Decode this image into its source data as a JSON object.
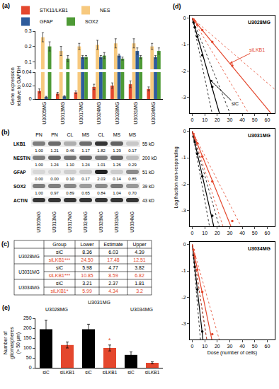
{
  "chart_data": [
    {
      "panel": "(a)",
      "type": "bar",
      "y_label": "Gene expression relative to GAPDH",
      "legend": "top",
      "categories": [
        "U3005MG",
        "U3013MG",
        "U3017MG",
        "U3024MG",
        "U3028MG",
        "U3031MG",
        "U3034MG"
      ],
      "series": [
        {
          "name": "STK11/LKB1",
          "color": "#e4472d",
          "values": [
            0.012,
            0.008,
            0.01,
            0.018,
            0.02,
            0.022,
            0.015
          ],
          "errors": [
            0.003,
            0.002,
            0.002,
            0.004,
            0.004,
            0.005,
            0.003
          ]
        },
        {
          "name": "NES",
          "color": "#f7c97e",
          "values": [
            0.26,
            0.17,
            0.2,
            0.21,
            0.22,
            0.22,
            0.2
          ],
          "errors": [
            0.03,
            0.03,
            0.02,
            0.03,
            0.03,
            0.03,
            0.02
          ]
        },
        {
          "name": "GFAP",
          "color": "#2e5c9c",
          "values": [
            0.003,
            0.004,
            0.13,
            0.13,
            0.14,
            0.17,
            0.13
          ],
          "errors": [
            0.001,
            0.001,
            0.01,
            0.01,
            0.01,
            0.02,
            0.01
          ]
        },
        {
          "name": "SOX2",
          "color": "#4e9a36",
          "values": [
            0.2,
            0.12,
            0.13,
            0.14,
            0.12,
            0.13,
            0.17
          ],
          "errors": [
            0.03,
            0.02,
            0.01,
            0.02,
            0.01,
            0.01,
            0.02
          ]
        }
      ],
      "segments": [
        {
          "ylim": [
            0.05,
            0.3
          ],
          "yticks": [
            0.1,
            0.2,
            0.3
          ]
        },
        {
          "ylim": [
            0,
            0.04
          ],
          "yticks": [
            0,
            0.02,
            0.04
          ]
        }
      ]
    },
    {
      "panel": "(d)",
      "type": "scatter",
      "title": "U3028MG",
      "xlim": [
        -2,
        66
      ],
      "ylim": [
        -3.6,
        0.1
      ],
      "xticks": [
        0,
        10,
        20,
        30,
        40,
        50,
        60
      ],
      "yticks": [
        0,
        -1,
        -2,
        -3
      ],
      "series": [
        {
          "name": "siC",
          "color": "#000000",
          "x": [
            1,
            2,
            4,
            8,
            16
          ],
          "values": [
            -0.15,
            -0.35,
            -0.7,
            -1.4,
            -2.6
          ],
          "estimate": 6.03,
          "lower": 8.36,
          "upper": 4.39,
          "arrow_label": "siC"
        },
        {
          "name": "siLKB1",
          "color": "#e4472d",
          "x": [
            1,
            2,
            4,
            8,
            16,
            32
          ],
          "values": [
            -0.05,
            -0.1,
            -0.25,
            -0.45,
            -0.9,
            -1.8
          ],
          "estimate": 17.48,
          "lower": 24.5,
          "upper": 12.51,
          "arrow_label": "siLKB1"
        }
      ]
    },
    {
      "type": "scatter",
      "title": "U3031MG",
      "y_label": "Log fraction non-responding",
      "xlim": [
        -2,
        66
      ],
      "ylim": [
        -3.6,
        0.1
      ],
      "xticks": [
        0,
        10,
        20,
        30,
        40,
        50,
        60
      ],
      "yticks": [
        0,
        -1,
        -2,
        -3
      ],
      "series": [
        {
          "name": "siC",
          "color": "#000000",
          "x": [
            1,
            2,
            4,
            8,
            16
          ],
          "values": [
            -0.2,
            -0.4,
            -0.85,
            -1.7,
            -3.2
          ],
          "estimate": 4.77,
          "lower": 5.98,
          "upper": 3.82
        },
        {
          "name": "siLKB1",
          "color": "#e4472d",
          "x": [
            1,
            2,
            4,
            8,
            16,
            32
          ],
          "values": [
            -0.1,
            -0.25,
            -0.45,
            -0.95,
            -1.9,
            -3.4
          ],
          "estimate": 8.59,
          "lower": 10.85,
          "upper": 6.82
        }
      ]
    },
    {
      "type": "scatter",
      "title": "U3034MG",
      "x_label": "Dose (number of cells)",
      "xlim": [
        -2,
        66
      ],
      "ylim": [
        -3.6,
        0.1
      ],
      "xticks": [
        0,
        10,
        20,
        30,
        40,
        50,
        60
      ],
      "yticks": [
        0,
        -1,
        -2,
        -3
      ],
      "series": [
        {
          "name": "siC",
          "color": "#000000",
          "x": [
            1,
            2,
            4,
            8
          ],
          "values": [
            -0.4,
            -0.85,
            -1.7,
            -3.3
          ],
          "estimate": 2.37,
          "lower": 3.21,
          "upper": 1.81
        },
        {
          "name": "siLKB1",
          "color": "#e4472d",
          "x": [
            1,
            2,
            4,
            8,
            16
          ],
          "values": [
            -0.2,
            -0.45,
            -0.95,
            -1.8,
            -3.4
          ],
          "estimate": 4.34,
          "lower": 5.99,
          "upper": 3.2
        }
      ]
    },
    {
      "panel": "(e)",
      "type": "bar",
      "y_label": "Number of gliomaspheres (> 50 µm)",
      "categories": [
        "siC",
        "siLKB1",
        "siC",
        "siLKB1",
        "siC",
        "siLKB1"
      ],
      "groups": [
        "U3028MG",
        "U3031MG",
        "U3034MG"
      ],
      "values": [
        195,
        115,
        195,
        100,
        65,
        25
      ],
      "errors": [
        45,
        15,
        25,
        15,
        15,
        5
      ],
      "colors": [
        "#000000",
        "#e4472d",
        "#000000",
        "#e4472d",
        "#000000",
        "#e4472d"
      ],
      "marks": [
        null,
        null,
        null,
        "*",
        null,
        null
      ],
      "ylim": [
        0,
        250
      ],
      "yticks": [
        0,
        50,
        100,
        150,
        200,
        250
      ]
    }
  ],
  "western_blot": {
    "panel": "(b)",
    "subtypes": [
      "PN",
      "PN",
      "CL",
      "MS",
      "CL",
      "MS",
      "MS"
    ],
    "cell_lines": [
      "U3005MG",
      "U3013MG",
      "U3017MG",
      "U3024MG",
      "U3028MG",
      "U3031MG",
      "U3034MG"
    ],
    "rows": [
      {
        "protein": "LKB1",
        "size": "55 kD",
        "values": [
          "1.00",
          "1.21",
          "0.46",
          "1.17",
          "1.82",
          "1.29",
          "0.17"
        ]
      },
      {
        "protein": "NESTIN",
        "size": "200 kD",
        "values": [
          "1.00",
          "1.24",
          "1.10",
          "1.24",
          "1.01",
          "1.26",
          "0.29"
        ]
      },
      {
        "protein": "GFAP",
        "size": "51 kD",
        "values": [
          "0.00",
          "0.00",
          "0.10",
          "0.17",
          "2.03",
          "0.14",
          "0.85"
        ]
      },
      {
        "protein": "SOX2",
        "size": "39 kD",
        "values": [
          "1.00",
          "0.97",
          "0.89",
          "0.65",
          "0.84",
          "1.04",
          "0.70"
        ]
      },
      {
        "protein": "ACTIN",
        "size": "43 kD"
      }
    ]
  },
  "table": {
    "panel": "(c)",
    "header": [
      "Group",
      "Lower",
      "Estimate",
      "Upper"
    ],
    "rows": [
      {
        "cell_line": "U3028MG",
        "group": "siC",
        "values": [
          "8.36",
          "6.03",
          "4.39"
        ],
        "color": "#000000"
      },
      {
        "cell_line": "U3028MG",
        "group": "siLKB1***",
        "values": [
          "24.50",
          "17.48",
          "12.51"
        ],
        "color": "#e4472d"
      },
      {
        "cell_line": "U3031MG",
        "group": "siC",
        "values": [
          "5.98",
          "4.77",
          "3.82"
        ],
        "color": "#000000"
      },
      {
        "cell_line": "U3031MG",
        "group": "siLKB1***",
        "values": [
          "10.85",
          "8.59",
          "6.82"
        ],
        "color": "#e4472d"
      },
      {
        "cell_line": "U3034MG",
        "group": "siC",
        "values": [
          "3.21",
          "2.37",
          "1.81"
        ],
        "color": "#000000"
      },
      {
        "cell_line": "U3034MG",
        "group": "siLKB1*",
        "values": [
          "5.99",
          "4.34",
          "3.2"
        ],
        "color": "#e4472d"
      }
    ]
  }
}
